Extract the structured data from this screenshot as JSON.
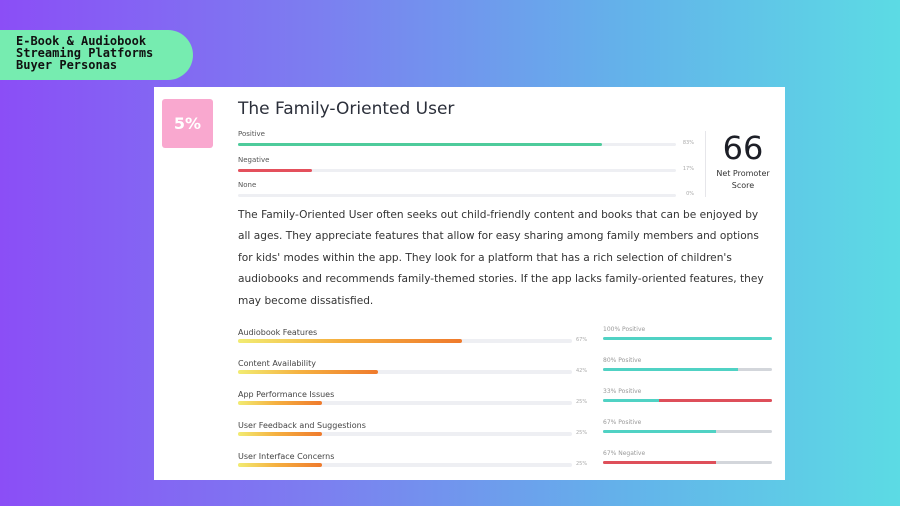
{
  "slide": {
    "title_lines": [
      "E-Book & Audiobook",
      "Streaming Platforms",
      "Buyer Personas"
    ]
  },
  "persona": {
    "share": "5%",
    "name": "The Family-Oriented User",
    "sentiment": [
      {
        "label": "Positive",
        "value_text": "83%",
        "value": 83,
        "color": "#4ecb9b"
      },
      {
        "label": "Negative",
        "value_text": "17%",
        "value": 17,
        "color": "#e4505c"
      },
      {
        "label": "None",
        "value_text": "0%",
        "value": 0,
        "color": "#bbbbbb"
      }
    ],
    "nps": {
      "value": "66",
      "label_line1": "Net Promoter",
      "label_line2": "Score"
    },
    "description": "The Family-Oriented User often seeks out child-friendly content and books that can be enjoyed by all ages. They appreciate features that allow for easy sharing among family members and options for kids' modes within the app. They look for a platform that has a rich selection of children's audiobooks and recommends family-themed stories. If the app lacks family-oriented features, they may become dissatisfied.",
    "features": [
      {
        "name": "Audiobook Features",
        "pct_text": "67%",
        "pct": 67,
        "sentiment_text": "100% Positive",
        "positive": 100,
        "negative": 0
      },
      {
        "name": "Content Availability",
        "pct_text": "42%",
        "pct": 42,
        "sentiment_text": "80% Positive",
        "positive": 80,
        "negative": 0
      },
      {
        "name": "App Performance Issues",
        "pct_text": "25%",
        "pct": 25,
        "sentiment_text": "33% Positive",
        "positive": 33,
        "negative": 67
      },
      {
        "name": "User Feedback and Suggestions",
        "pct_text": "25%",
        "pct": 25,
        "sentiment_text": "67% Positive",
        "positive": 67,
        "negative": 0
      },
      {
        "name": "User Interface Concerns",
        "pct_text": "25%",
        "pct": 25,
        "sentiment_text": "67% Negative",
        "positive": 0,
        "negative": 67
      }
    ],
    "colors": {
      "positive": "#50d2c4",
      "negative": "#de4f5a",
      "neutral": "#d3d6db"
    }
  }
}
